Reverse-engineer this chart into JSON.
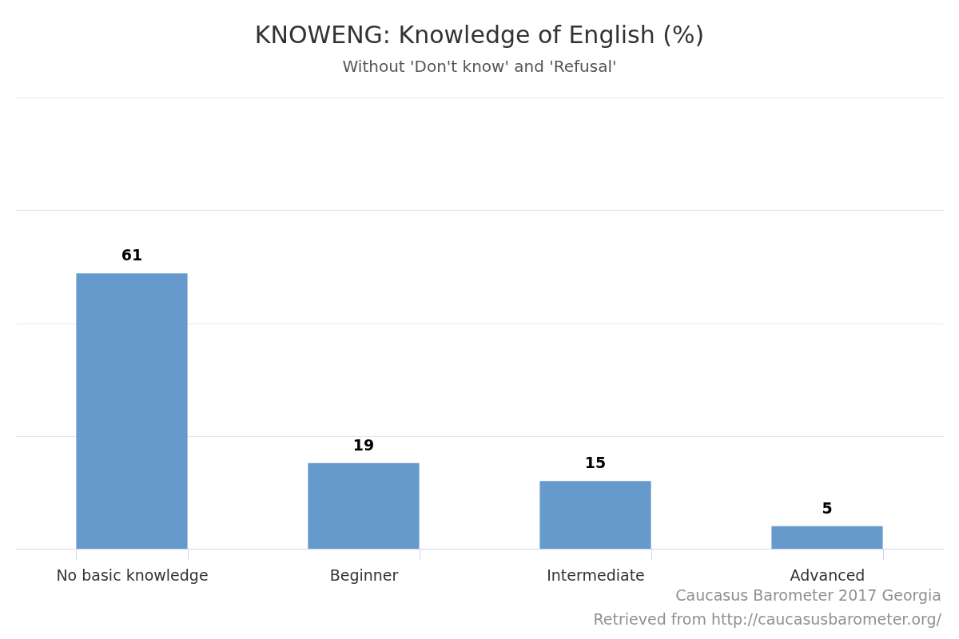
{
  "chart_data": {
    "type": "bar",
    "title": "KNOWENG: Knowledge of English (%)",
    "subtitle": "Without 'Don't know' and 'Refusal'",
    "categories": [
      "No basic knowledge",
      "Beginner",
      "Intermediate",
      "Advanced"
    ],
    "values": [
      61,
      19,
      15,
      5
    ],
    "color": "#6699cc",
    "ylim": [
      0,
      100
    ],
    "yticks": [
      {
        "value": 0,
        "label": null
      },
      {
        "value": 25,
        "label": null
      },
      {
        "value": 50,
        "label": null
      },
      {
        "value": 75,
        "label": null
      },
      {
        "value": 100,
        "label": null
      }
    ],
    "grid": "y",
    "data_labels": true,
    "tick_labels": "x",
    "annotations": [
      "Caucasus Barometer 2017 Georgia",
      "Retrieved from http://caucasusbarometer.org/"
    ]
  }
}
